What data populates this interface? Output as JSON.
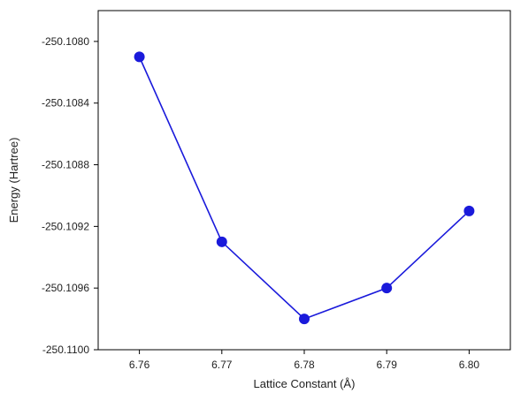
{
  "chart_data": {
    "type": "line",
    "xlabel": "Lattice Constant (Å)",
    "ylabel": "Energy (Hartree)",
    "xlim": [
      6.755,
      6.805
    ],
    "ylim": [
      -250.11,
      -250.1078
    ],
    "x_ticks": [
      6.76,
      6.77,
      6.78,
      6.79,
      6.8
    ],
    "x_tick_labels": [
      "6.76",
      "6.77",
      "6.78",
      "6.79",
      "6.80"
    ],
    "y_ticks": [
      -250.108,
      -250.1084,
      -250.1088,
      -250.1092,
      -250.1096,
      -250.11
    ],
    "y_tick_labels": [
      "-250.1080",
      "-250.1084",
      "-250.1088",
      "-250.1092",
      "-250.1096",
      "-250.1100"
    ],
    "grid": false,
    "series": [
      {
        "x": [
          6.76,
          6.77,
          6.78,
          6.79,
          6.8
        ],
        "y": [
          -250.1081,
          -250.1093,
          -250.1098,
          -250.1096,
          -250.1091
        ],
        "color": "#1a1adb"
      }
    ]
  }
}
